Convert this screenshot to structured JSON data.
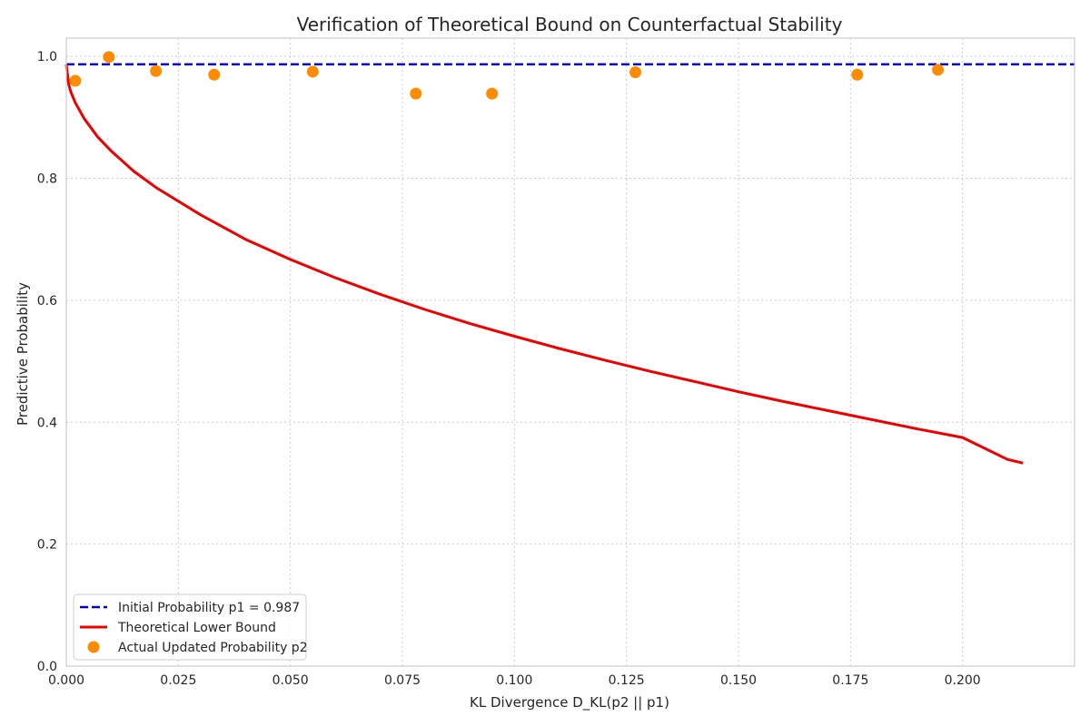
{
  "chart_data": {
    "type": "line",
    "title": "Verification of Theoretical Bound on Counterfactual Stability",
    "xlabel": "KL Divergence D_KL(p2 || p1)",
    "ylabel": "Predictive Probability",
    "xlim": [
      0.0,
      0.225
    ],
    "ylim": [
      0.0,
      1.03
    ],
    "grid": true,
    "legend_position": "lower-left",
    "x_ticks": [
      0.0,
      0.025,
      0.05,
      0.075,
      0.1,
      0.125,
      0.15,
      0.175,
      0.2
    ],
    "x_tick_labels": [
      "0.000",
      "0.025",
      "0.050",
      "0.075",
      "0.100",
      "0.125",
      "0.150",
      "0.175",
      "0.200"
    ],
    "y_ticks": [
      0.0,
      0.2,
      0.4,
      0.6,
      0.8,
      1.0
    ],
    "y_tick_labels": [
      "0.0",
      "0.2",
      "0.4",
      "0.6",
      "0.8",
      "1.0"
    ],
    "series": [
      {
        "name": "Initial Probability p1 = 0.987",
        "kind": "hline",
        "y": 0.987,
        "color": "#0000cc",
        "style": "dashed"
      },
      {
        "name": "Theoretical Lower Bound",
        "kind": "line",
        "color": "#ee0000",
        "x": [
          0.0,
          0.0005,
          0.001,
          0.002,
          0.004,
          0.007,
          0.01,
          0.015,
          0.02,
          0.03,
          0.04,
          0.05,
          0.06,
          0.07,
          0.08,
          0.09,
          0.1,
          0.11,
          0.12,
          0.13,
          0.14,
          0.15,
          0.16,
          0.17,
          0.18,
          0.19,
          0.2,
          0.21,
          0.2135
        ],
        "y": [
          0.987,
          0.955,
          0.942,
          0.924,
          0.898,
          0.868,
          0.845,
          0.812,
          0.785,
          0.74,
          0.7,
          0.667,
          0.637,
          0.61,
          0.585,
          0.562,
          0.541,
          0.521,
          0.502,
          0.484,
          0.467,
          0.45,
          0.434,
          0.419,
          0.404,
          0.389,
          0.375,
          0.339,
          0.333
        ]
      },
      {
        "name": "Actual Updated Probability p2",
        "kind": "scatter",
        "color": "#ff8c00",
        "x": [
          0.002,
          0.0095,
          0.02,
          0.033,
          0.055,
          0.078,
          0.095,
          0.127,
          0.1765,
          0.1945
        ],
        "y": [
          0.96,
          0.999,
          0.976,
          0.97,
          0.975,
          0.939,
          0.939,
          0.974,
          0.97,
          0.978
        ]
      }
    ]
  }
}
